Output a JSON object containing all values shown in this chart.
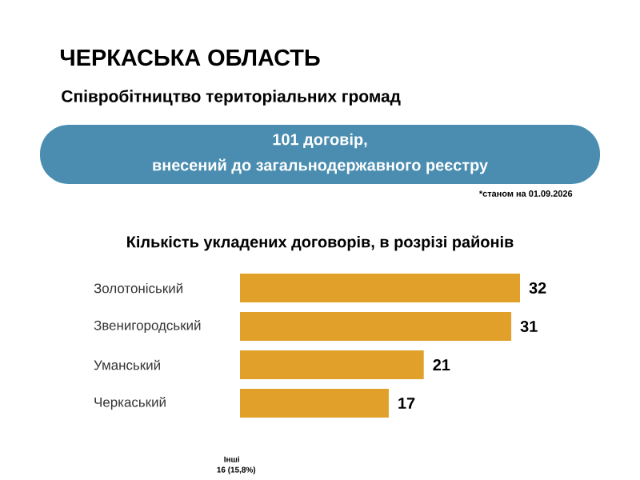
{
  "chart_data": {
    "type": "bar",
    "orientation": "horizontal",
    "title": "ЧЕРКАСЬКА ОБЛАСТЬ",
    "subtitle": "Співробітництво територіальних громад",
    "annotations": [
      "101 договір,",
      "внесений до загальнодержавного реєстру",
      "*станом на 01.09.2026",
      "Кількість укладених договорів, в розрізі районів",
      "Інші",
      "16 (15,8%)"
    ],
    "categories": [
      "Золотоніський",
      "Звенигородський",
      "Уманський",
      "Черкаський"
    ],
    "values": [
      32,
      31,
      21,
      17
    ],
    "color": "#e0a02a",
    "data_labels": true
  }
}
